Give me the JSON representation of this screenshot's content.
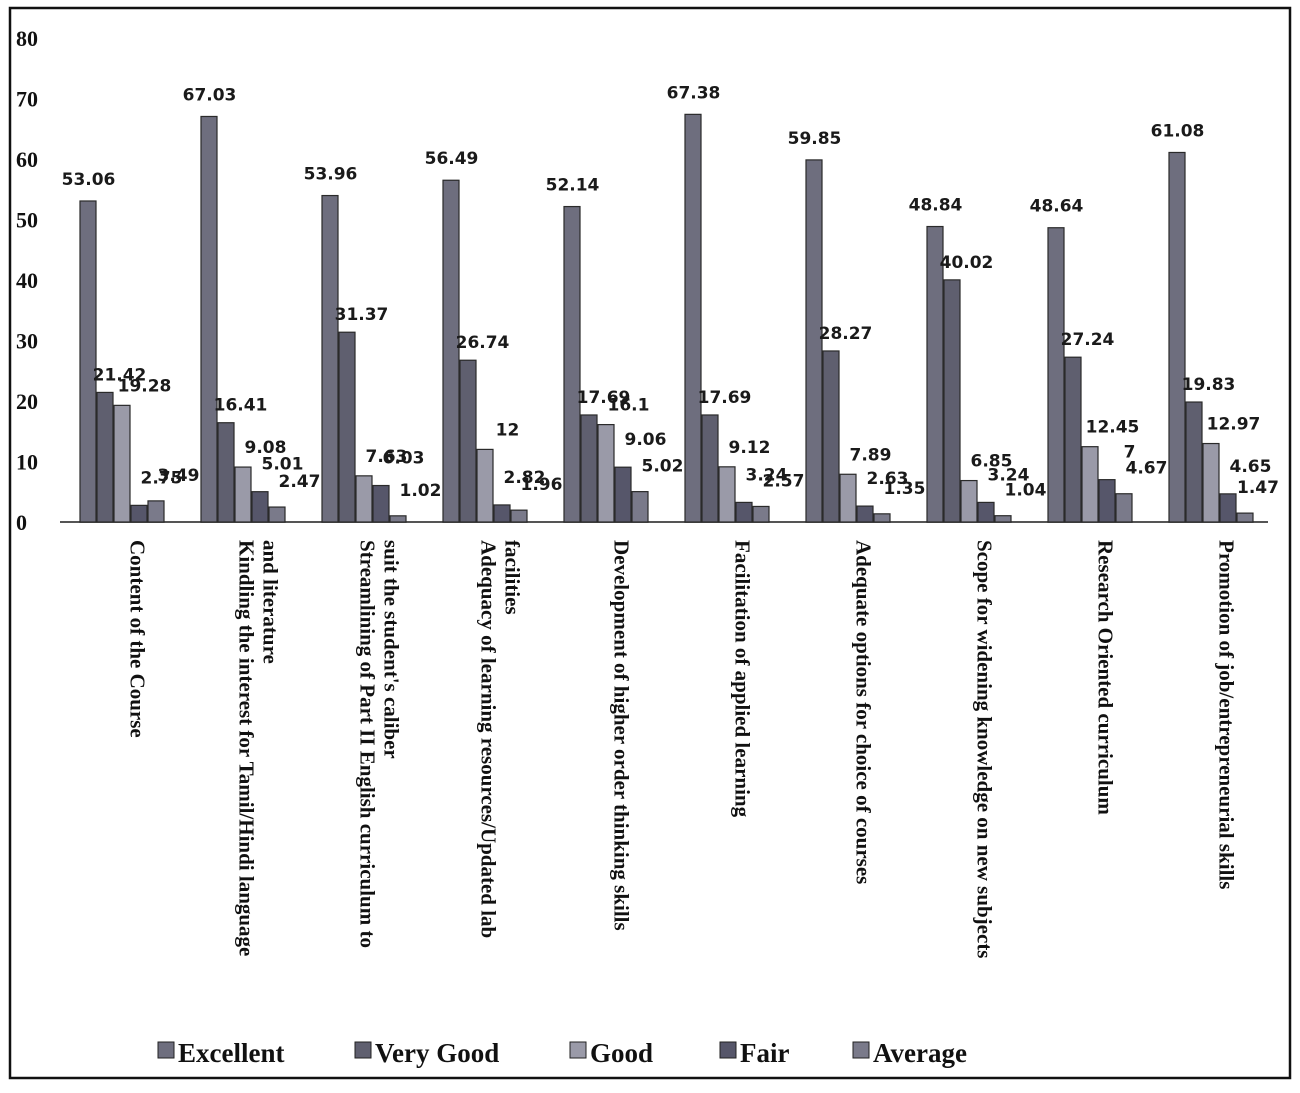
{
  "chart_data": {
    "type": "bar",
    "title": "",
    "xlabel": "",
    "ylabel": "",
    "ylim": [
      0,
      80
    ],
    "yticks": [
      "0",
      "10",
      "20",
      "30",
      "40",
      "50",
      "60",
      "70",
      "80"
    ],
    "grid": false,
    "legend_position": "bottom",
    "categories": [
      [
        "Content of the Course"
      ],
      [
        "Kindling the interest for Tamil/Hindi language",
        "and literature"
      ],
      [
        "Streamlining of Part II English curriculum to",
        "suit the student's caliber"
      ],
      [
        "Adequacy of learning resources/Updated lab",
        "facilities"
      ],
      [
        "Development of higher order thinking skills"
      ],
      [
        "Facilitation of applied learning"
      ],
      [
        "Adequate options for choice of courses"
      ],
      [
        "Scope for widening knowledge on new subjects"
      ],
      [
        "Research Oriented curriculum"
      ],
      [
        "Promotion  of job/entrepreneurial skills"
      ]
    ],
    "series": [
      {
        "name": "Excellent",
        "color": "#6e6e7e",
        "values": [
          53.06,
          67.03,
          53.96,
          56.49,
          52.14,
          67.38,
          59.85,
          48.84,
          48.64,
          61.08
        ]
      },
      {
        "name": "Very Good",
        "color": "#5f5f6f",
        "values": [
          21.42,
          16.41,
          31.37,
          26.74,
          17.69,
          17.69,
          28.27,
          40.02,
          27.24,
          19.83
        ]
      },
      {
        "name": "Good",
        "color": "#9a9aa8",
        "values": [
          19.28,
          9.08,
          7.63,
          12,
          16.1,
          9.12,
          7.89,
          6.85,
          12.45,
          12.97
        ]
      },
      {
        "name": "Fair",
        "color": "#56566a",
        "values": [
          2.75,
          5.01,
          6.03,
          2.82,
          9.06,
          3.24,
          2.63,
          3.24,
          7,
          4.65
        ]
      },
      {
        "name": "Average",
        "color": "#7a7a8a",
        "values": [
          3.49,
          2.47,
          1.02,
          1.96,
          5.02,
          2.57,
          1.35,
          1.04,
          4.67,
          1.47
        ]
      }
    ],
    "data_labels": [
      [
        "53.06",
        "21.42",
        "19.28",
        "2.75",
        "3.49"
      ],
      [
        "67.03",
        "16.41",
        "9.08",
        "5.01",
        "2.47"
      ],
      [
        "53.96",
        "31.37",
        "7.63",
        "6.03",
        "1.02"
      ],
      [
        "56.49",
        "26.74",
        "12",
        "2.82",
        "1.96"
      ],
      [
        "52.14",
        "17.69",
        "16.1",
        "9.06",
        "5.02"
      ],
      [
        "67.38",
        "17.69",
        "9.12",
        "3.24",
        "2.57"
      ],
      [
        "59.85",
        "28.27",
        "7.89",
        "2.63",
        "1.35"
      ],
      [
        "48.84",
        "40.02",
        "6.85",
        "3.24",
        "1.04"
      ],
      [
        "48.64",
        "27.24",
        "12.45",
        "7",
        "4.67"
      ],
      [
        "61.08",
        "19.83",
        "12.97",
        "4.65",
        "1.47"
      ]
    ]
  }
}
